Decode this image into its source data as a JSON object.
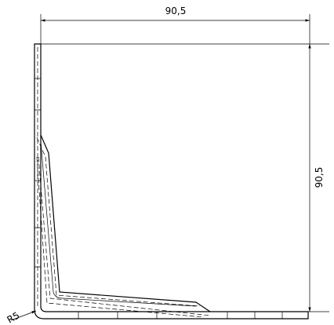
{
  "dimensions": {
    "width": "90,5",
    "height": "90,5",
    "radius": "R5"
  }
}
